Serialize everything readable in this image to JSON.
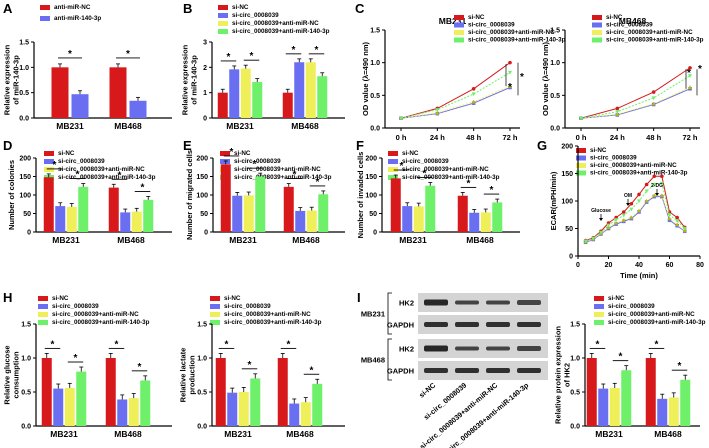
{
  "colors": {
    "red": "#d7191c",
    "blue": "#6a6ef0",
    "yellow": "#efef5a",
    "green": "#6ef06a",
    "blot_bg": "#d4d4d4",
    "band": "#1e1e1e"
  },
  "chart_data": [
    {
      "panel": "A",
      "type": "bar",
      "categories": [
        "MB231",
        "MB468"
      ],
      "ylabel": "Relative expression\nof miR-140-3p",
      "ylim": [
        0,
        1.5
      ],
      "yticks": [
        "0.0",
        "0.5",
        "1.0",
        "1.5"
      ],
      "series": [
        {
          "name": "anti-miR-NC",
          "values": [
            1.0,
            1.0
          ]
        },
        {
          "name": "anti-miR-140-3p",
          "values": [
            0.47,
            0.34
          ]
        }
      ],
      "annotations": [
        "*",
        "*"
      ]
    },
    {
      "panel": "B",
      "type": "bar",
      "categories": [
        "MB231",
        "MB468"
      ],
      "ylabel": "Relative expression\nof miR-140-3p",
      "ylim": [
        0,
        3
      ],
      "yticks": [
        "0",
        "1",
        "2",
        "3"
      ],
      "series": [
        {
          "name": "si-NC",
          "values": [
            1.0,
            1.0
          ]
        },
        {
          "name": "si-circ_0008039",
          "values": [
            1.92,
            2.2
          ]
        },
        {
          "name": "si-circ_0008039+anti-miR-NC",
          "values": [
            1.95,
            2.2
          ]
        },
        {
          "name": "si-circ_0008039+anti-miR-140-3p",
          "values": [
            1.42,
            1.65
          ]
        }
      ],
      "annotations": [
        "*",
        "*",
        "*",
        "*"
      ]
    },
    {
      "panel": "C1",
      "type": "line",
      "title": "MB231",
      "xlabel": "",
      "ylabel": "OD value (λ=490 nm)",
      "categories": [
        "0 h",
        "24 h",
        "48 h",
        "72 h"
      ],
      "ylim": [
        0,
        1.5
      ],
      "yticks": [
        "0.0",
        "0.5",
        "1.0",
        "1.5"
      ],
      "series": [
        {
          "name": "si-NC",
          "values": [
            0.15,
            0.3,
            0.6,
            1.0
          ]
        },
        {
          "name": "si-circ_0008039",
          "values": [
            0.15,
            0.22,
            0.38,
            0.62
          ]
        },
        {
          "name": "si-circ_0008039+anti-miR-NC",
          "values": [
            0.15,
            0.23,
            0.4,
            0.64
          ]
        },
        {
          "name": "si-circ_0008039+anti-miR-140-3p",
          "values": [
            0.15,
            0.28,
            0.52,
            0.85
          ]
        }
      ],
      "annotations": [
        "*",
        "*"
      ]
    },
    {
      "panel": "C2",
      "type": "line",
      "title": "MB468",
      "xlabel": "",
      "ylabel": "OD value (λ=490 nm)",
      "categories": [
        "0 h",
        "24 h",
        "48 h",
        "72 h"
      ],
      "ylim": [
        0,
        1.5
      ],
      "yticks": [
        "0.0",
        "0.5",
        "1.0",
        "1.5"
      ],
      "series": [
        {
          "name": "si-NC",
          "values": [
            0.15,
            0.3,
            0.55,
            0.92
          ]
        },
        {
          "name": "si-circ_0008039",
          "values": [
            0.15,
            0.2,
            0.36,
            0.6
          ]
        },
        {
          "name": "si-circ_0008039+anti-miR-NC",
          "values": [
            0.15,
            0.21,
            0.37,
            0.62
          ]
        },
        {
          "name": "si-circ_0008039+anti-miR-140-3p",
          "values": [
            0.15,
            0.25,
            0.46,
            0.8
          ]
        }
      ],
      "annotations": [
        "*",
        "*"
      ]
    },
    {
      "panel": "D",
      "type": "bar",
      "categories": [
        "MB231",
        "MB468"
      ],
      "ylabel": "Number of colonies",
      "ylim": [
        0,
        200
      ],
      "yticks": [
        "0",
        "50",
        "100",
        "150",
        "200"
      ],
      "series": [
        {
          "name": "si-NC",
          "values": [
            148,
            120
          ]
        },
        {
          "name": "si-circ_0008039",
          "values": [
            70,
            53
          ]
        },
        {
          "name": "si-circ_0008039+anti-miR-NC",
          "values": [
            68,
            55
          ]
        },
        {
          "name": "si-circ_0008039+anti-miR-140-3p",
          "values": [
            122,
            87
          ]
        }
      ],
      "annotations": [
        "*",
        "*",
        "*",
        "*"
      ]
    },
    {
      "panel": "E",
      "type": "bar",
      "categories": [
        "MB231",
        "MB468"
      ],
      "ylabel": "Number of migrated cells",
      "ylim": [
        0,
        200
      ],
      "yticks": [
        "0",
        "50",
        "100",
        "150",
        "200"
      ],
      "series": [
        {
          "name": "si-NC",
          "values": [
            183,
            122
          ]
        },
        {
          "name": "si-circ_0008039",
          "values": [
            98,
            57
          ]
        },
        {
          "name": "si-circ_0008039+anti-miR-NC",
          "values": [
            99,
            58
          ]
        },
        {
          "name": "si-circ_0008039+anti-miR-140-3p",
          "values": [
            150,
            102
          ]
        }
      ],
      "annotations": [
        "*",
        "*",
        "*",
        "*"
      ]
    },
    {
      "panel": "F",
      "type": "bar",
      "categories": [
        "MB231",
        "MB468"
      ],
      "ylabel": "Number of invaded cells",
      "ylim": [
        0,
        200
      ],
      "yticks": [
        "0",
        "50",
        "100",
        "150",
        "200"
      ],
      "series": [
        {
          "name": "si-NC",
          "values": [
            145,
            98
          ]
        },
        {
          "name": "si-circ_0008039",
          "values": [
            70,
            52
          ]
        },
        {
          "name": "si-circ_0008039+anti-miR-NC",
          "values": [
            69,
            53
          ]
        },
        {
          "name": "si-circ_0008039+anti-miR-140-3p",
          "values": [
            125,
            80
          ]
        }
      ],
      "annotations": [
        "*",
        "*",
        "*",
        "*"
      ]
    },
    {
      "panel": "G",
      "type": "line",
      "xlabel": "Time (min)",
      "ylabel": "ECAR(mPH/min)",
      "xlim": [
        0,
        80
      ],
      "ylim": [
        0,
        200
      ],
      "xticks": [
        "0",
        "20",
        "40",
        "60",
        "80"
      ],
      "yticks": [
        "0",
        "50",
        "100",
        "150",
        "200"
      ],
      "x": [
        5,
        10,
        15,
        20,
        25,
        30,
        35,
        40,
        45,
        50,
        55,
        60,
        65,
        70
      ],
      "series": [
        {
          "name": "si-NC",
          "values": [
            28,
            33,
            45,
            60,
            70,
            80,
            95,
            112,
            130,
            145,
            145,
            80,
            70,
            52
          ]
        },
        {
          "name": "si-circ_0008039",
          "values": [
            25,
            30,
            40,
            50,
            58,
            63,
            68,
            80,
            98,
            108,
            108,
            65,
            55,
            45
          ]
        },
        {
          "name": "si-circ_0008039+anti-miR-NC",
          "values": [
            26,
            31,
            41,
            52,
            60,
            65,
            70,
            82,
            100,
            110,
            110,
            68,
            57,
            46
          ]
        },
        {
          "name": "si-circ_0008039+anti-miR-140-3p",
          "values": [
            27,
            32,
            43,
            56,
            66,
            74,
            85,
            100,
            118,
            130,
            132,
            75,
            64,
            50
          ]
        }
      ],
      "annotations": [
        "Glucose",
        "OM",
        "2-DG"
      ]
    },
    {
      "panel": "H1",
      "type": "bar",
      "categories": [
        "MB231",
        "MB468"
      ],
      "ylabel": "Relative glucose\nconsumption",
      "ylim": [
        0,
        1.5
      ],
      "yticks": [
        "0.0",
        "0.5",
        "1.0",
        "1.5"
      ],
      "series": [
        {
          "name": "si-NC",
          "values": [
            1.0,
            1.0
          ]
        },
        {
          "name": "si-circ_0008039",
          "values": [
            0.55,
            0.39
          ]
        },
        {
          "name": "si-circ_0008039+anti-miR-NC",
          "values": [
            0.56,
            0.41
          ]
        },
        {
          "name": "si-circ_0008039+anti-miR-140-3p",
          "values": [
            0.8,
            0.67
          ]
        }
      ],
      "annotations": [
        "*",
        "*",
        "*",
        "*"
      ]
    },
    {
      "panel": "H2",
      "type": "bar",
      "categories": [
        "MB231",
        "MB468"
      ],
      "ylabel": "Relative lactate\nproduction",
      "ylim": [
        0,
        1.5
      ],
      "yticks": [
        "0.0",
        "0.5",
        "1.0",
        "1.5"
      ],
      "series": [
        {
          "name": "si-NC",
          "values": [
            1.0,
            1.0
          ]
        },
        {
          "name": "si-circ_0008039",
          "values": [
            0.49,
            0.33
          ]
        },
        {
          "name": "si-circ_0008039+anti-miR-NC",
          "values": [
            0.5,
            0.35
          ]
        },
        {
          "name": "si-circ_0008039+anti-miR-140-3p",
          "values": [
            0.7,
            0.62
          ]
        }
      ],
      "annotations": [
        "*",
        "*",
        "*",
        "*"
      ]
    },
    {
      "panel": "I2",
      "type": "bar",
      "categories": [
        "MB231",
        "MB468"
      ],
      "ylabel": "Relative protein expression\nof HK2",
      "ylim": [
        0,
        1.5
      ],
      "yticks": [
        "0.0",
        "0.5",
        "1.0",
        "1.5"
      ],
      "series": [
        {
          "name": "si-NC",
          "values": [
            1.0,
            1.0
          ]
        },
        {
          "name": "si-circ_0008039",
          "values": [
            0.55,
            0.4
          ]
        },
        {
          "name": "si-circ_0008039+anti-miR-NC",
          "values": [
            0.56,
            0.42
          ]
        },
        {
          "name": "si-circ_0008039+anti-miR-140-3p",
          "values": [
            0.82,
            0.68
          ]
        }
      ],
      "annotations": [
        "*",
        "*",
        "*",
        "*"
      ]
    }
  ],
  "panel_letters": [
    "A",
    "B",
    "C",
    "D",
    "E",
    "F",
    "G",
    "H",
    "I"
  ],
  "blot": {
    "rows": [
      "HK2",
      "GAPDH",
      "HK2",
      "GAPDH"
    ],
    "groups": [
      "MB231",
      "MB468"
    ],
    "lanes": [
      "si-NC",
      "si-circ_0008039",
      "si-circ_0008039+anti-miR-NC",
      "si-circ_0008039+anti-miR-140-3p"
    ]
  }
}
